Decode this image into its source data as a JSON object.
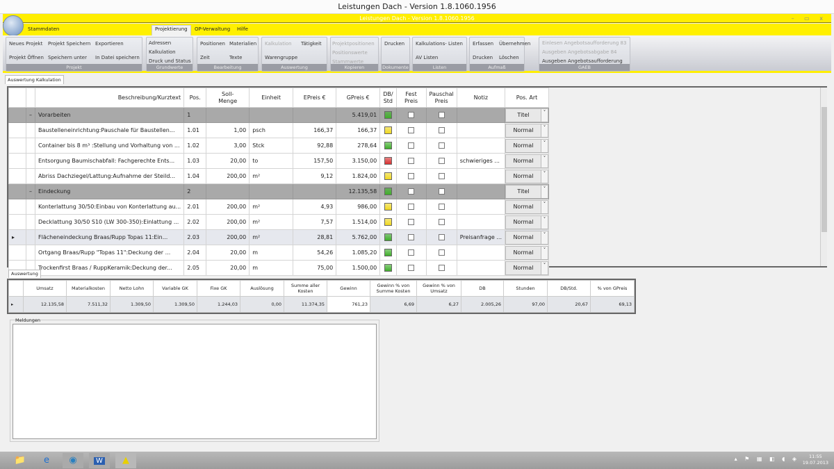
{
  "window": {
    "os_title": "Leistungen Dach  -  Version 1.8.1060.1956",
    "app_title": "Leistungen Dach  -  Version 1.8.1060.1956",
    "controls": "– ▭ x"
  },
  "menu": [
    {
      "label": "Stammdaten"
    },
    {
      "label": "Projektierung",
      "selected": true
    },
    {
      "label": "OP-Verwaltung"
    },
    {
      "label": "Hilfe"
    }
  ],
  "ribbon": {
    "projekt": {
      "caption": "Projekt",
      "items": [
        "Neues Projekt",
        "Projekt Speichern",
        "Exportieren",
        "Projekt Öffnen",
        "Speichern unter",
        "In Datei speichern"
      ]
    },
    "grundwerte": {
      "caption": "Grundwerte",
      "items": [
        "Adressen",
        "Kalkulation",
        "Druck und Status"
      ]
    },
    "bearbeitung": {
      "caption": "Bearbeitung",
      "items": [
        "Positionen",
        "Materialien",
        "Zeit",
        "Texte"
      ]
    },
    "auswertung": {
      "caption": "Auswertung",
      "items": [
        "Kalkulation",
        "Tätigkeit",
        "Warengruppe"
      ]
    },
    "kopieren": {
      "caption": "Kopieren",
      "items": [
        "Projektpositionen",
        "Positionswerte",
        "Stammwerte"
      ]
    },
    "dokumente": {
      "caption": "Dokumente",
      "items": [
        "Drucken"
      ]
    },
    "listen": {
      "caption": "Listen",
      "items": [
        "Kalkulations- Listen",
        "AV Listen"
      ]
    },
    "aufmass": {
      "caption": "Aufmaß",
      "items": [
        "Erfassen",
        "Übernehmen",
        "Drucken",
        "Löschen"
      ]
    },
    "gaeb": {
      "caption": "GAEB",
      "items": [
        "Einlesen Angebotsaufforderung 83",
        "Ausgeben Angebotsabgabe 84",
        "Ausgeben Angebotsaufforderung"
      ]
    }
  },
  "main_tab": "Auswertung Kalkulation",
  "grid": {
    "columns": [
      "",
      "",
      "Beschreibung/Kurztext",
      "Pos.",
      "Soll-\nMenge",
      "Einheit",
      "EPreis €",
      "GPreis €",
      "DB/\nStd",
      "Fest\nPreis",
      "Pauschal\nPreis",
      "Notiz",
      "Pos. Art"
    ],
    "status_colors": {
      "green": "#3fae2a",
      "yellow": "#f0d820",
      "red": "#d83030"
    },
    "rows": [
      {
        "type": "title",
        "expand": "–",
        "desc": "Vorarbeiten",
        "pos": "1",
        "menge": "",
        "einheit": "",
        "epreis": "",
        "gpreis": "5.419,01",
        "db": "green",
        "notiz": "",
        "posart": "Titel"
      },
      {
        "desc": "Baustelleneinrichtung:Pauschale für Baustellen...",
        "pos": "1.01",
        "menge": "1,00",
        "einheit": "psch",
        "epreis": "166,37",
        "gpreis": "166,37",
        "db": "yellow",
        "notiz": "",
        "posart": "Normal"
      },
      {
        "desc": "Container bis 8 m³ :Stellung und Vorhaltung von ...",
        "pos": "1.02",
        "menge": "3,00",
        "einheit": "Stck",
        "epreis": "92,88",
        "gpreis": "278,64",
        "db": "green",
        "notiz": "",
        "posart": "Normal"
      },
      {
        "desc": "Entsorgung Baumischabfall: Fachgerechte Ents...",
        "pos": "1.03",
        "menge": "20,00",
        "einheit": "to",
        "epreis": "157,50",
        "gpreis": "3.150,00",
        "db": "red",
        "notiz": "schwieriges ...",
        "posart": "Normal"
      },
      {
        "desc": "Abriss Dachziegel/Lattung:Aufnahme der Steild...",
        "pos": "1.04",
        "menge": "200,00",
        "einheit": "m²",
        "epreis": "9,12",
        "gpreis": "1.824,00",
        "db": "yellow",
        "notiz": "",
        "posart": "Normal"
      },
      {
        "type": "title",
        "expand": "–",
        "desc": "Eindeckung",
        "pos": "2",
        "menge": "",
        "einheit": "",
        "epreis": "",
        "gpreis": "12.135,58",
        "db": "green",
        "notiz": "",
        "posart": "Titel"
      },
      {
        "desc": "Konterlattung 30/50:Einbau von Konterlattung au...",
        "pos": "2.01",
        "menge": "200,00",
        "einheit": "m²",
        "epreis": "4,93",
        "gpreis": "986,00",
        "db": "yellow",
        "notiz": "",
        "posart": "Normal"
      },
      {
        "desc": "Decklattung 30/50 S10 (LW 300-350):Einlattung ...",
        "pos": "2.02",
        "menge": "200,00",
        "einheit": "m²",
        "epreis": "7,57",
        "gpreis": "1.514,00",
        "db": "yellow",
        "notiz": "",
        "posart": "Normal"
      },
      {
        "type": "selected",
        "desc": "Flächeneindeckung Braas/Rupp Topas 11:Ein...",
        "pos": "2.03",
        "menge": "200,00",
        "einheit": "m²",
        "epreis": "28,81",
        "gpreis": "5.762,00",
        "db": "green",
        "notiz": "Preisanfrage ...",
        "posart": "Normal"
      },
      {
        "desc": "Ortgang Braas/Rupp \"Topas 11\":Deckung der ...",
        "pos": "2.04",
        "menge": "20,00",
        "einheit": "m",
        "epreis": "54,26",
        "gpreis": "1.085,20",
        "db": "green",
        "notiz": "",
        "posart": "Normal"
      },
      {
        "desc": "Trockenfirst Braas / RuppKeramik:Deckung der...",
        "pos": "2.05",
        "menge": "20,00",
        "einheit": "m",
        "epreis": "75,00",
        "gpreis": "1.500,00",
        "db": "green",
        "notiz": "",
        "posart": "Normal"
      }
    ]
  },
  "summary": {
    "tab": "Auswertung",
    "columns": [
      "Umsatz",
      "Materialkosten",
      "Netto Lohn",
      "Variable GK",
      "Fixe GK",
      "Auslösung",
      "Summe aller Kosten",
      "Gewinn",
      "Gewinn % von Summe Kosten",
      "Gewinn % von Umsatz",
      "DB",
      "Stunden",
      "DB/Std.",
      "% von GPreis"
    ],
    "values": [
      "12.135,58",
      "7.511,32",
      "1.309,50",
      "1.309,50",
      "1.244,03",
      "0,00",
      "11.374,35",
      "761,23",
      "6,69",
      "6,27",
      "2.005,26",
      "97,00",
      "20,67",
      "69,13"
    ]
  },
  "messages": {
    "label": "Meldungen"
  },
  "taskbar": {
    "time": "11:55",
    "date": "19.07.2013",
    "apps": [
      "explorer-icon",
      "internet-explorer-icon",
      "media-icon",
      "word-icon",
      "leistungen-dach-icon"
    ]
  }
}
